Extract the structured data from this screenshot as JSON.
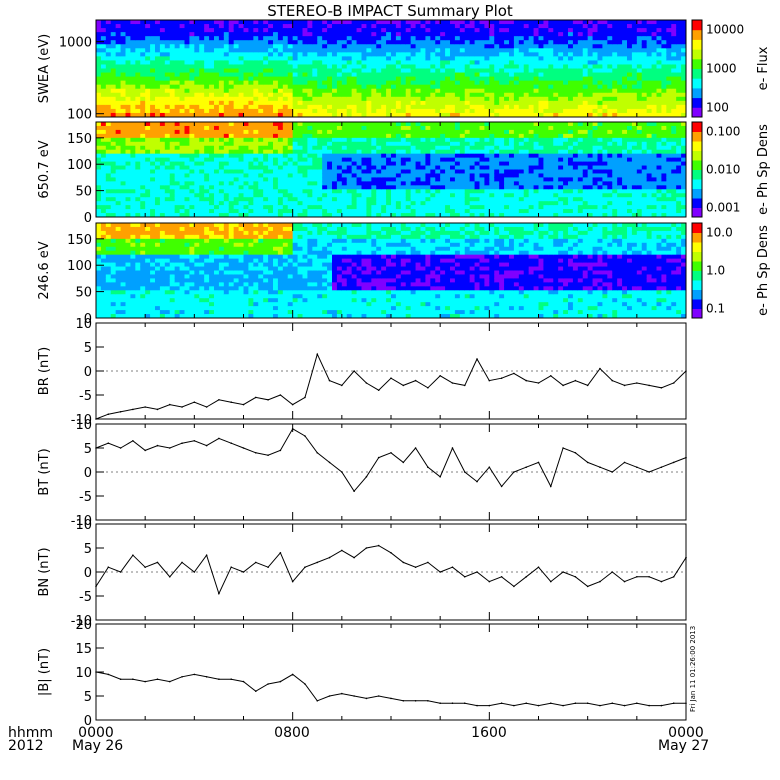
{
  "title": "STEREO-B IMPACT Summary Plot",
  "footer": {
    "row1_label": "hhmm",
    "row2_label": "2012",
    "x_ticks": [
      "0000",
      "0800",
      "1600",
      "0000"
    ],
    "date_start": "May 26",
    "date_end": "May 27"
  },
  "side_stamp": "Fri Jan 11 01:26:00 2013",
  "colors": {
    "background": "#ffffff",
    "line": "#000000",
    "colormap": [
      "#8000ff",
      "#0000ff",
      "#00a0ff",
      "#00ffff",
      "#00ff80",
      "#40ff00",
      "#c0ff00",
      "#ffff00",
      "#ffa000",
      "#ff0000"
    ]
  },
  "chart_data": [
    {
      "type": "heatmap",
      "id": "swea",
      "ylabel": "SWEA (eV)",
      "y_scale": "log",
      "ylim": [
        90,
        2000
      ],
      "yticks": [
        "100",
        "1000"
      ],
      "colorbar": {
        "label": "e- Flux",
        "scale": "log",
        "ticks": [
          "100",
          "1000",
          "10000"
        ]
      },
      "x_range_hours": [
        0,
        24
      ]
    },
    {
      "type": "heatmap",
      "id": "pad_650",
      "ylabel": "650.7 eV",
      "ylim": [
        0,
        180
      ],
      "yticks": [
        "0",
        "50",
        "100",
        "150"
      ],
      "colorbar": {
        "label": "e- Ph Sp Dens",
        "scale": "log",
        "ticks": [
          "0.001",
          "0.010",
          "0.100"
        ]
      },
      "x_range_hours": [
        0,
        24
      ]
    },
    {
      "type": "heatmap",
      "id": "pad_246",
      "ylabel": "246.6 eV",
      "ylim": [
        0,
        180
      ],
      "yticks": [
        "0",
        "50",
        "100",
        "150"
      ],
      "colorbar": {
        "label": "e- Ph Sp Dens",
        "scale": "log",
        "ticks": [
          "0.1",
          "1.0",
          "10.0"
        ]
      },
      "x_range_hours": [
        0,
        24
      ]
    },
    {
      "type": "line",
      "id": "br",
      "ylabel": "BR (nT)",
      "ylim": [
        -10,
        10
      ],
      "yticks": [
        "-10",
        "-5",
        "0",
        "5",
        "10"
      ],
      "x_hours": [
        0,
        0.5,
        1,
        1.5,
        2,
        2.5,
        3,
        3.5,
        4,
        4.5,
        5,
        5.5,
        6,
        6.5,
        7,
        7.5,
        8,
        8.5,
        9,
        9.5,
        10,
        10.5,
        11,
        11.5,
        12,
        12.5,
        13,
        13.5,
        14,
        14.5,
        15,
        15.5,
        16,
        16.5,
        17,
        17.5,
        18,
        18.5,
        19,
        19.5,
        20,
        20.5,
        21,
        21.5,
        22,
        22.5,
        23,
        23.5,
        24
      ],
      "values": [
        -10,
        -9,
        -8.5,
        -8,
        -7.5,
        -8,
        -7,
        -7.5,
        -6.5,
        -7.5,
        -6,
        -6.5,
        -7,
        -5.5,
        -6,
        -5,
        -7,
        -5.5,
        3.5,
        -2,
        -3,
        0,
        -2.5,
        -4,
        -1.5,
        -3,
        -2,
        -3.5,
        -1,
        -2.5,
        -3,
        2.5,
        -2,
        -1.5,
        -0.5,
        -2,
        -2.5,
        -1,
        -3,
        -2,
        -3,
        0.5,
        -2,
        -3,
        -2.5,
        -3,
        -3.5,
        -2.5,
        0
      ]
    },
    {
      "type": "line",
      "id": "bt",
      "ylabel": "BT (nT)",
      "ylim": [
        -10,
        10
      ],
      "yticks": [
        "-10",
        "-5",
        "0",
        "5",
        "10"
      ],
      "x_hours": [
        0,
        0.5,
        1,
        1.5,
        2,
        2.5,
        3,
        3.5,
        4,
        4.5,
        5,
        5.5,
        6,
        6.5,
        7,
        7.5,
        8,
        8.5,
        9,
        9.5,
        10,
        10.5,
        11,
        11.5,
        12,
        12.5,
        13,
        13.5,
        14,
        14.5,
        15,
        15.5,
        16,
        16.5,
        17,
        17.5,
        18,
        18.5,
        19,
        19.5,
        20,
        20.5,
        21,
        21.5,
        22,
        22.5,
        23,
        23.5,
        24
      ],
      "values": [
        5,
        6,
        5,
        6.5,
        4.5,
        5.5,
        5,
        6,
        6.5,
        5.5,
        7,
        6,
        5,
        4,
        3.5,
        4.5,
        9,
        7.5,
        4,
        2,
        0,
        -4,
        -1,
        3,
        4,
        2,
        5,
        1,
        -1,
        5,
        0,
        -2,
        1,
        -3,
        0,
        1,
        2,
        -3,
        5,
        4,
        2,
        1,
        0,
        2,
        1,
        0,
        1,
        2,
        3
      ]
    },
    {
      "type": "line",
      "id": "bn",
      "ylabel": "BN (nT)",
      "ylim": [
        -10,
        10
      ],
      "yticks": [
        "-10",
        "-5",
        "0",
        "5",
        "10"
      ],
      "x_hours": [
        0,
        0.5,
        1,
        1.5,
        2,
        2.5,
        3,
        3.5,
        4,
        4.5,
        5,
        5.5,
        6,
        6.5,
        7,
        7.5,
        8,
        8.5,
        9,
        9.5,
        10,
        10.5,
        11,
        11.5,
        12,
        12.5,
        13,
        13.5,
        14,
        14.5,
        15,
        15.5,
        16,
        16.5,
        17,
        17.5,
        18,
        18.5,
        19,
        19.5,
        20,
        20.5,
        21,
        21.5,
        22,
        22.5,
        23,
        23.5,
        24
      ],
      "values": [
        -3,
        1,
        0,
        3.5,
        1,
        2,
        -1,
        2,
        0,
        3.5,
        -4.5,
        1,
        0,
        2,
        1,
        4,
        -2,
        1,
        2,
        3,
        4.5,
        3,
        5,
        5.5,
        4,
        2,
        1,
        2,
        0,
        1,
        -1,
        0,
        -2,
        -1,
        -3,
        -1,
        1,
        -2,
        0,
        -1,
        -3,
        -2,
        0,
        -2,
        -1,
        -1,
        -2,
        -1,
        3
      ]
    },
    {
      "type": "line",
      "id": "bmag",
      "ylabel": "|B| (nT)",
      "ylim": [
        0,
        20
      ],
      "yticks": [
        "0",
        "5",
        "10",
        "15",
        "20"
      ],
      "x_hours": [
        0,
        0.5,
        1,
        1.5,
        2,
        2.5,
        3,
        3.5,
        4,
        4.5,
        5,
        5.5,
        6,
        6.5,
        7,
        7.5,
        8,
        8.5,
        9,
        9.5,
        10,
        10.5,
        11,
        11.5,
        12,
        12.5,
        13,
        13.5,
        14,
        14.5,
        15,
        15.5,
        16,
        16.5,
        17,
        17.5,
        18,
        18.5,
        19,
        19.5,
        20,
        20.5,
        21,
        21.5,
        22,
        22.5,
        23,
        23.5,
        24
      ],
      "values": [
        10,
        9.5,
        8.5,
        8.5,
        8,
        8.5,
        8,
        9,
        9.5,
        9,
        8.5,
        8.5,
        8,
        6,
        7.5,
        8,
        9.5,
        7.5,
        4,
        5,
        5.5,
        5,
        4.5,
        5,
        4.5,
        4,
        4,
        4,
        3.5,
        3.5,
        3.5,
        3,
        3,
        3.5,
        3,
        3.5,
        3,
        3.5,
        3,
        3.5,
        3.5,
        3,
        3.5,
        3,
        3.5,
        3,
        3,
        3.5,
        3.5
      ]
    }
  ]
}
